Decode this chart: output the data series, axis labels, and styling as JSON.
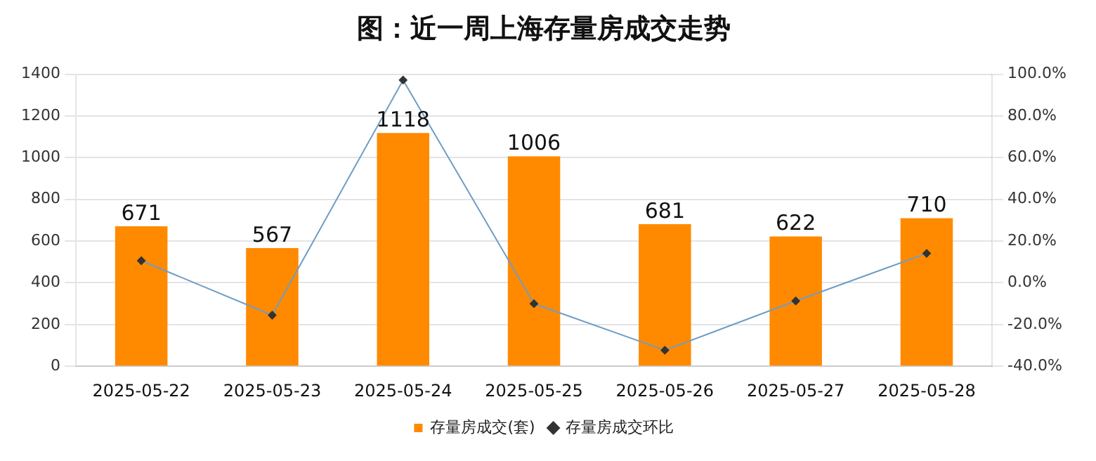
{
  "chart_data": {
    "type": "bar",
    "title": "图：近一周上海存量房成交走势",
    "categories": [
      "2025-05-22",
      "2025-05-23",
      "2025-05-24",
      "2025-05-25",
      "2025-05-26",
      "2025-05-27",
      "2025-05-28"
    ],
    "series": [
      {
        "name": "存量房成交(套)",
        "color": "#ff8a00",
        "values": [
          671,
          567,
          1118,
          1006,
          681,
          622,
          710
        ],
        "value_labels": [
          "671",
          "567",
          "1118",
          "1006",
          "681",
          "622",
          "710"
        ]
      },
      {
        "name": "存量房成交环比",
        "type": "line",
        "axis": "y2",
        "color": "#6f9dc4",
        "values": [
          10.6,
          -15.5,
          97.2,
          -10.0,
          -32.3,
          -8.7,
          14.1
        ]
      }
    ],
    "ylim": [
      0,
      1400
    ],
    "yticks": [
      0,
      200,
      400,
      600,
      800,
      1000,
      1200,
      1400
    ],
    "y2lim": [
      -40,
      100
    ],
    "y2ticks": [
      {
        "value": -40,
        "label": "-40.0%"
      },
      {
        "value": -20,
        "label": "-20.0%"
      },
      {
        "value": 0,
        "label": "0.0%"
      },
      {
        "value": 20,
        "label": "20.0%"
      },
      {
        "value": 40,
        "label": "40.0%"
      },
      {
        "value": 60,
        "label": "60.0%"
      },
      {
        "value": 80,
        "label": "80.0%"
      },
      {
        "value": 100,
        "label": "100.0%"
      }
    ],
    "grid": "y",
    "legend": "bottom",
    "marker": "diamond",
    "line_style": "solid"
  }
}
